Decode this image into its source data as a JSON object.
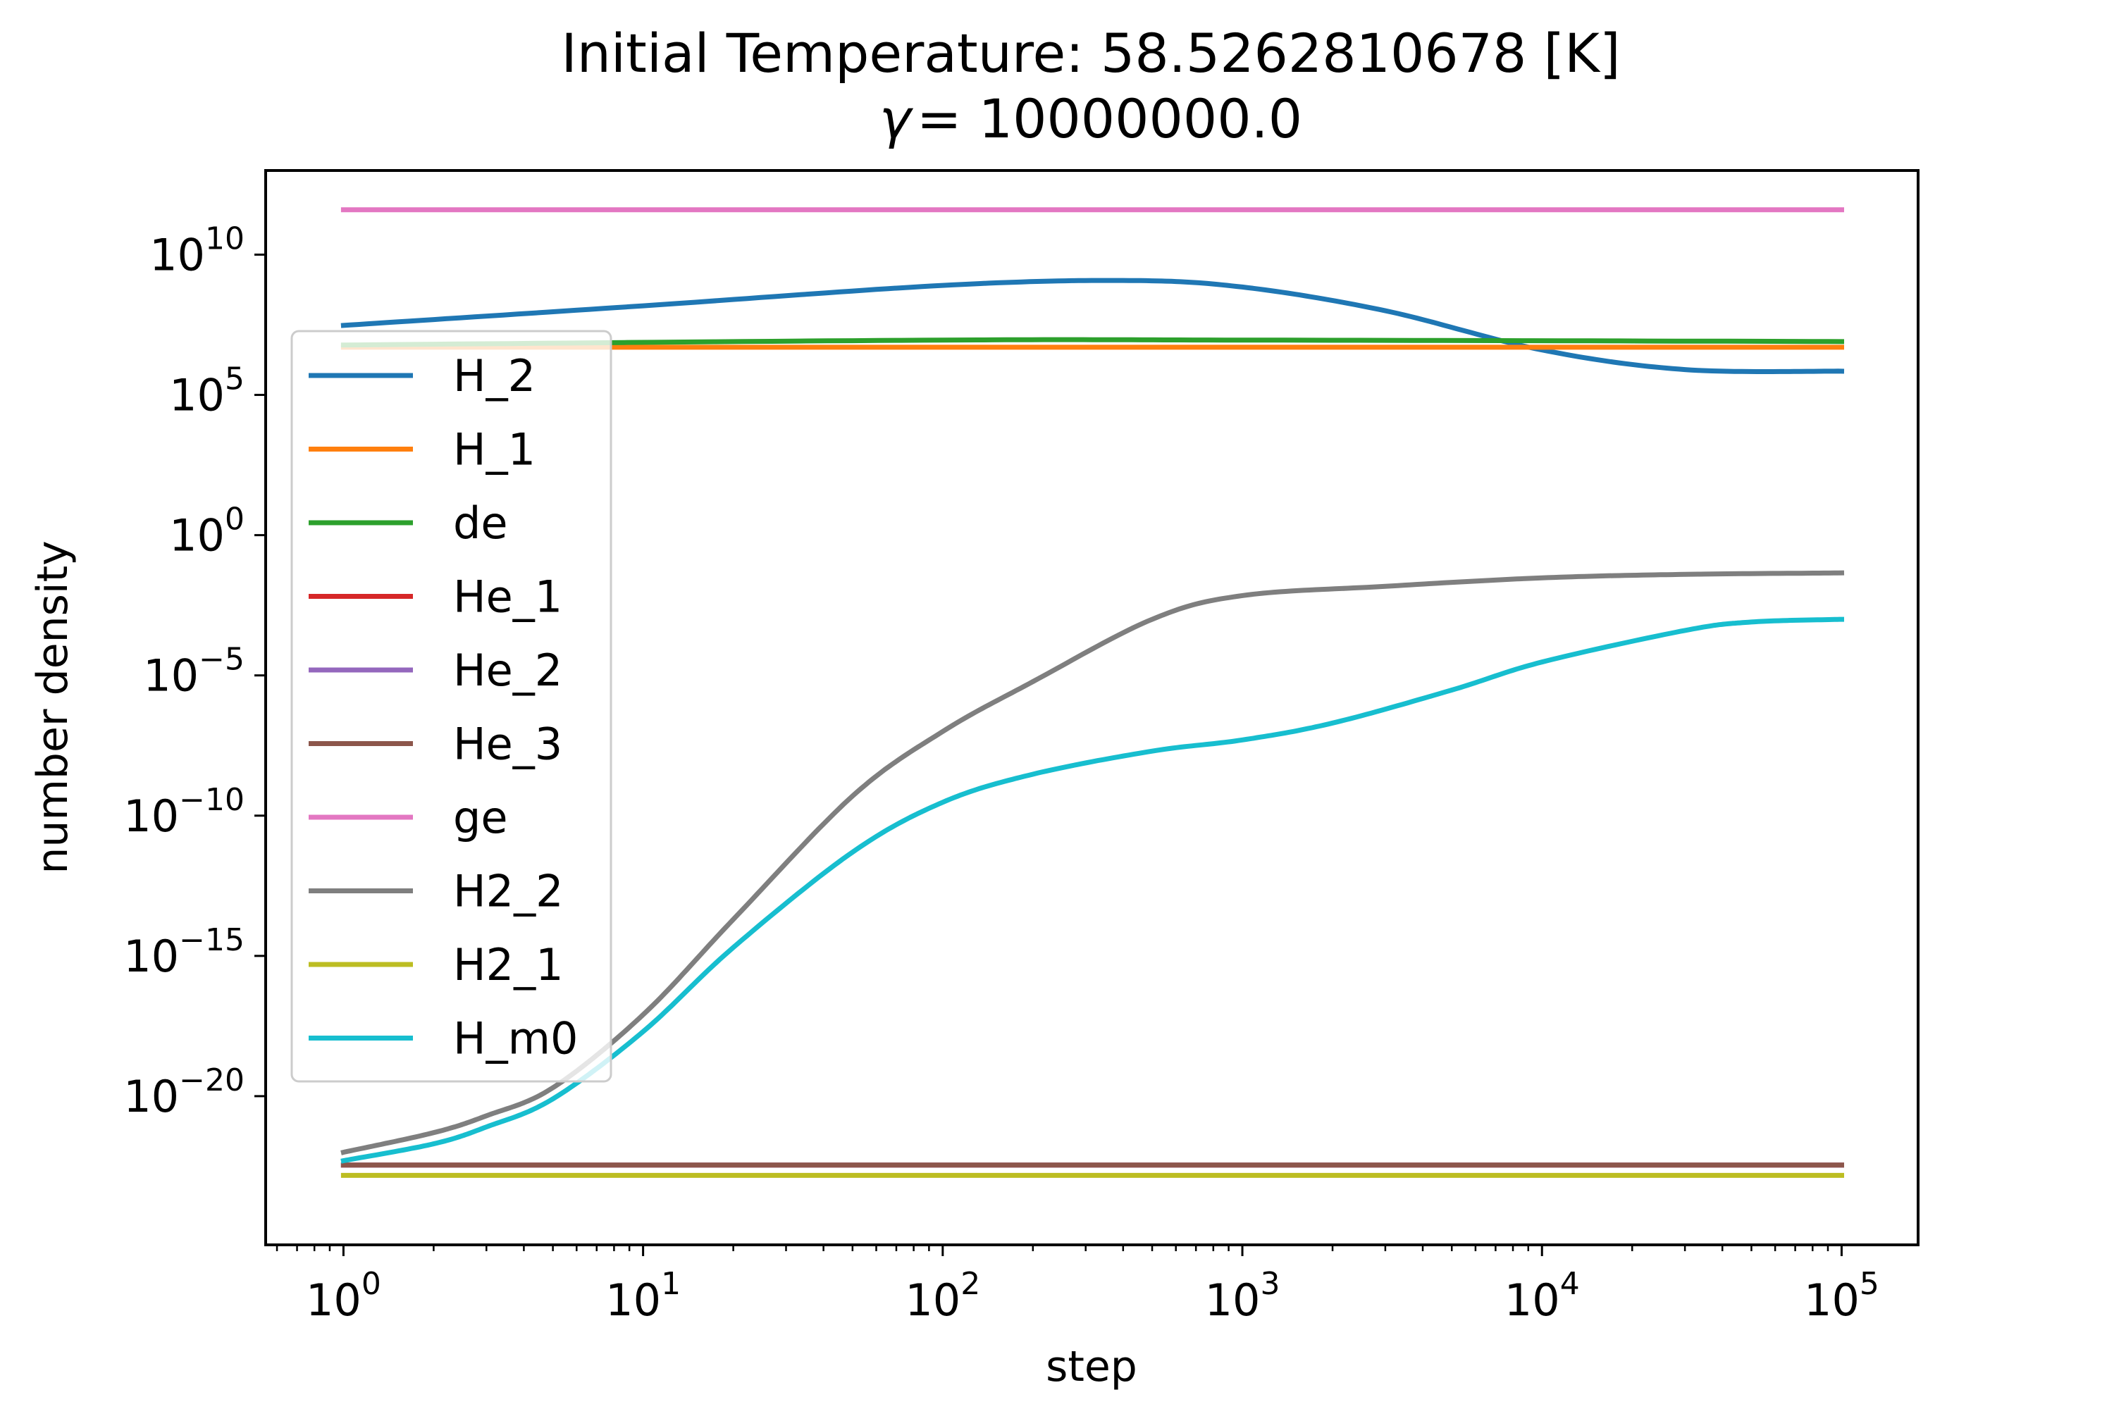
{
  "chart_data": {
    "type": "line",
    "title_line1": "Initial Temperature: 58.5262810678 [K]",
    "title_line2_symbol": "γ",
    "title_line2_value": "= 10000000.0",
    "xlabel": "step",
    "ylabel": "number density",
    "x_scale": "log",
    "y_scale": "log",
    "xlim": [
      0.55,
      180000
    ],
    "ylim": [
      5e-26,
      10000000000000.0
    ],
    "x_ticks": [
      {
        "base": "10",
        "exp": "0",
        "value": 1
      },
      {
        "base": "10",
        "exp": "1",
        "value": 10
      },
      {
        "base": "10",
        "exp": "2",
        "value": 100
      },
      {
        "base": "10",
        "exp": "3",
        "value": 1000
      },
      {
        "base": "10",
        "exp": "4",
        "value": 10000
      },
      {
        "base": "10",
        "exp": "5",
        "value": 100000
      }
    ],
    "y_ticks": [
      {
        "base": "10",
        "exp": "10",
        "value": 10000000000.0
      },
      {
        "base": "10",
        "exp": "5",
        "value": 100000.0
      },
      {
        "base": "10",
        "exp": "0",
        "value": 1
      },
      {
        "base": "10",
        "exp": "−5",
        "value": 1e-05
      },
      {
        "base": "10",
        "exp": "−10",
        "value": 1e-10
      },
      {
        "base": "10",
        "exp": "−15",
        "value": 1e-15
      },
      {
        "base": "10",
        "exp": "−20",
        "value": 1e-20
      }
    ],
    "legend_position": "center-left",
    "grid": false,
    "series": [
      {
        "name": "H_2",
        "color": "#1f77b4",
        "x": [
          1,
          10,
          100,
          400,
          1000,
          3000,
          10000,
          30000,
          100000
        ],
        "y": [
          30000000.0,
          150000000.0,
          800000000.0,
          1200000000.0,
          700000000.0,
          100000000.0,
          4000000.0,
          800000.0,
          700000.0
        ]
      },
      {
        "name": "H_1",
        "color": "#ff7f0e",
        "x": [
          1,
          100000
        ],
        "y": [
          5000000.0,
          5000000.0
        ]
      },
      {
        "name": "de",
        "color": "#2ca02c",
        "x": [
          1,
          100,
          1000,
          100000
        ],
        "y": [
          6000000.0,
          9000000.0,
          9000000.0,
          8000000.0
        ]
      },
      {
        "name": "He_1",
        "color": "#d62728",
        "x": [
          1,
          100000
        ],
        "y": [
          3.5e-23,
          3.5e-23
        ]
      },
      {
        "name": "He_2",
        "color": "#9467bd",
        "x": [
          1,
          100000
        ],
        "y": [
          3.5e-23,
          3.5e-23
        ]
      },
      {
        "name": "He_3",
        "color": "#8c564b",
        "x": [
          1,
          100000
        ],
        "y": [
          3.5e-23,
          3.5e-23
        ]
      },
      {
        "name": "ge",
        "color": "#e377c2",
        "x": [
          1,
          100000
        ],
        "y": [
          400000000000.0,
          400000000000.0
        ]
      },
      {
        "name": "H2_2",
        "color": "#7f7f7f",
        "x": [
          1,
          2,
          3,
          5,
          10,
          20,
          50,
          100,
          200,
          500,
          1000,
          3000,
          10000,
          30000,
          100000
        ],
        "y": [
          1e-22,
          5e-22,
          2e-21,
          2e-20,
          8e-18,
          2e-14,
          5e-10,
          1e-07,
          6e-06,
          0.001,
          0.007,
          0.015,
          0.03,
          0.04,
          0.045
        ]
      },
      {
        "name": "H2_1",
        "color": "#bcbd22",
        "x": [
          1,
          100000
        ],
        "y": [
          1.5e-23,
          1.5e-23
        ]
      },
      {
        "name": "H_m0",
        "color": "#17becf",
        "x": [
          1,
          2,
          3,
          5,
          10,
          20,
          50,
          100,
          200,
          500,
          1000,
          2000,
          5000,
          10000,
          30000,
          50000,
          100000
        ],
        "y": [
          5e-23,
          2e-22,
          8e-22,
          8e-21,
          2e-18,
          2e-15,
          5e-12,
          3e-10,
          3e-09,
          2e-08,
          5e-08,
          2e-07,
          3e-06,
          3e-05,
          0.0004,
          0.0008,
          0.001
        ]
      }
    ]
  }
}
